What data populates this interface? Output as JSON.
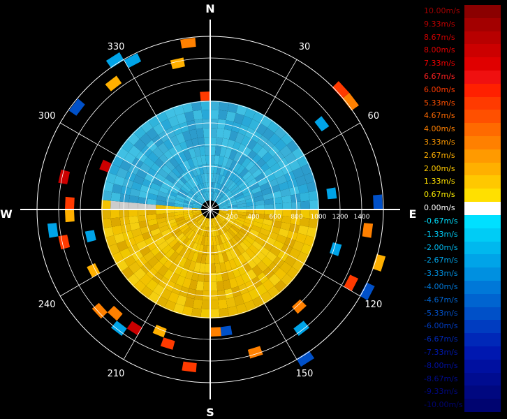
{
  "chart_data": {
    "type": "polar-heatmap",
    "description_units": "radial velocity (m/s)",
    "compass": {
      "north": "N",
      "east": "E",
      "south": "S",
      "west": "W"
    },
    "angle_labels": [
      "30",
      "60",
      "120",
      "150",
      "210",
      "240",
      "300",
      "330"
    ],
    "angle_values": [
      30,
      60,
      120,
      150,
      210,
      240,
      300,
      330
    ],
    "range_ticks": [
      200,
      400,
      600,
      800,
      1000,
      1200,
      1400
    ],
    "range_tick_labels": [
      "200",
      "400",
      "600",
      "800",
      "1000",
      "1200",
      "1400"
    ],
    "range_max": 1600,
    "legend": {
      "labels": [
        "10.00m/s",
        "9.33m/s",
        "8.67m/s",
        "8.00m/s",
        "7.33m/s",
        "6.67m/s",
        "6.00m/s",
        "5.33m/s",
        "4.67m/s",
        "4.00m/s",
        "3.33m/s",
        "2.67m/s",
        "2.00m/s",
        "1.33m/s",
        "0.67m/s",
        "0.00m/s",
        "-0.67m/s",
        "-1.33m/s",
        "-2.00m/s",
        "-2.67m/s",
        "-3.33m/s",
        "-4.00m/s",
        "-4.67m/s",
        "-5.33m/s",
        "-6.00m/s",
        "-6.67m/s",
        "-7.33m/s",
        "-8.00m/s",
        "-8.67m/s",
        "-9.33m/s",
        "-10.00m/s"
      ],
      "colors": [
        "#8b0000",
        "#a30000",
        "#b80000",
        "#cc0000",
        "#e00000",
        "#f01010",
        "#ff2000",
        "#ff3a00",
        "#ff5000",
        "#ff6a00",
        "#ff8000",
        "#ff9a00",
        "#ffb000",
        "#ffc800",
        "#ffe000",
        "#ffffff",
        "#00e0ff",
        "#00ccf5",
        "#00b8ee",
        "#00a4e8",
        "#0090e0",
        "#0078d8",
        "#0064d0",
        "#0050c8",
        "#003cc0",
        "#0028b8",
        "#0018b0",
        "#0010a0",
        "#000c90",
        "#000880",
        "#000470"
      ],
      "label_colors": [
        "#a00000",
        "#c00000",
        "#d00000",
        "#e00000",
        "#f00000",
        "#ff2020",
        "#ff3a00",
        "#ff5000",
        "#ff6a00",
        "#ff8000",
        "#ff9a00",
        "#ffb000",
        "#ffc800",
        "#ffe000",
        "#fff000",
        "#ffffff",
        "#00e0ff",
        "#00ccf5",
        "#00b8ee",
        "#00a4e8",
        "#0090e0",
        "#0078d8",
        "#0064d0",
        "#0050c8",
        "#003cc0",
        "#0028b8",
        "#0018b0",
        "#0010a0",
        "#000c90",
        "#000880",
        "#000470"
      ]
    }
  }
}
